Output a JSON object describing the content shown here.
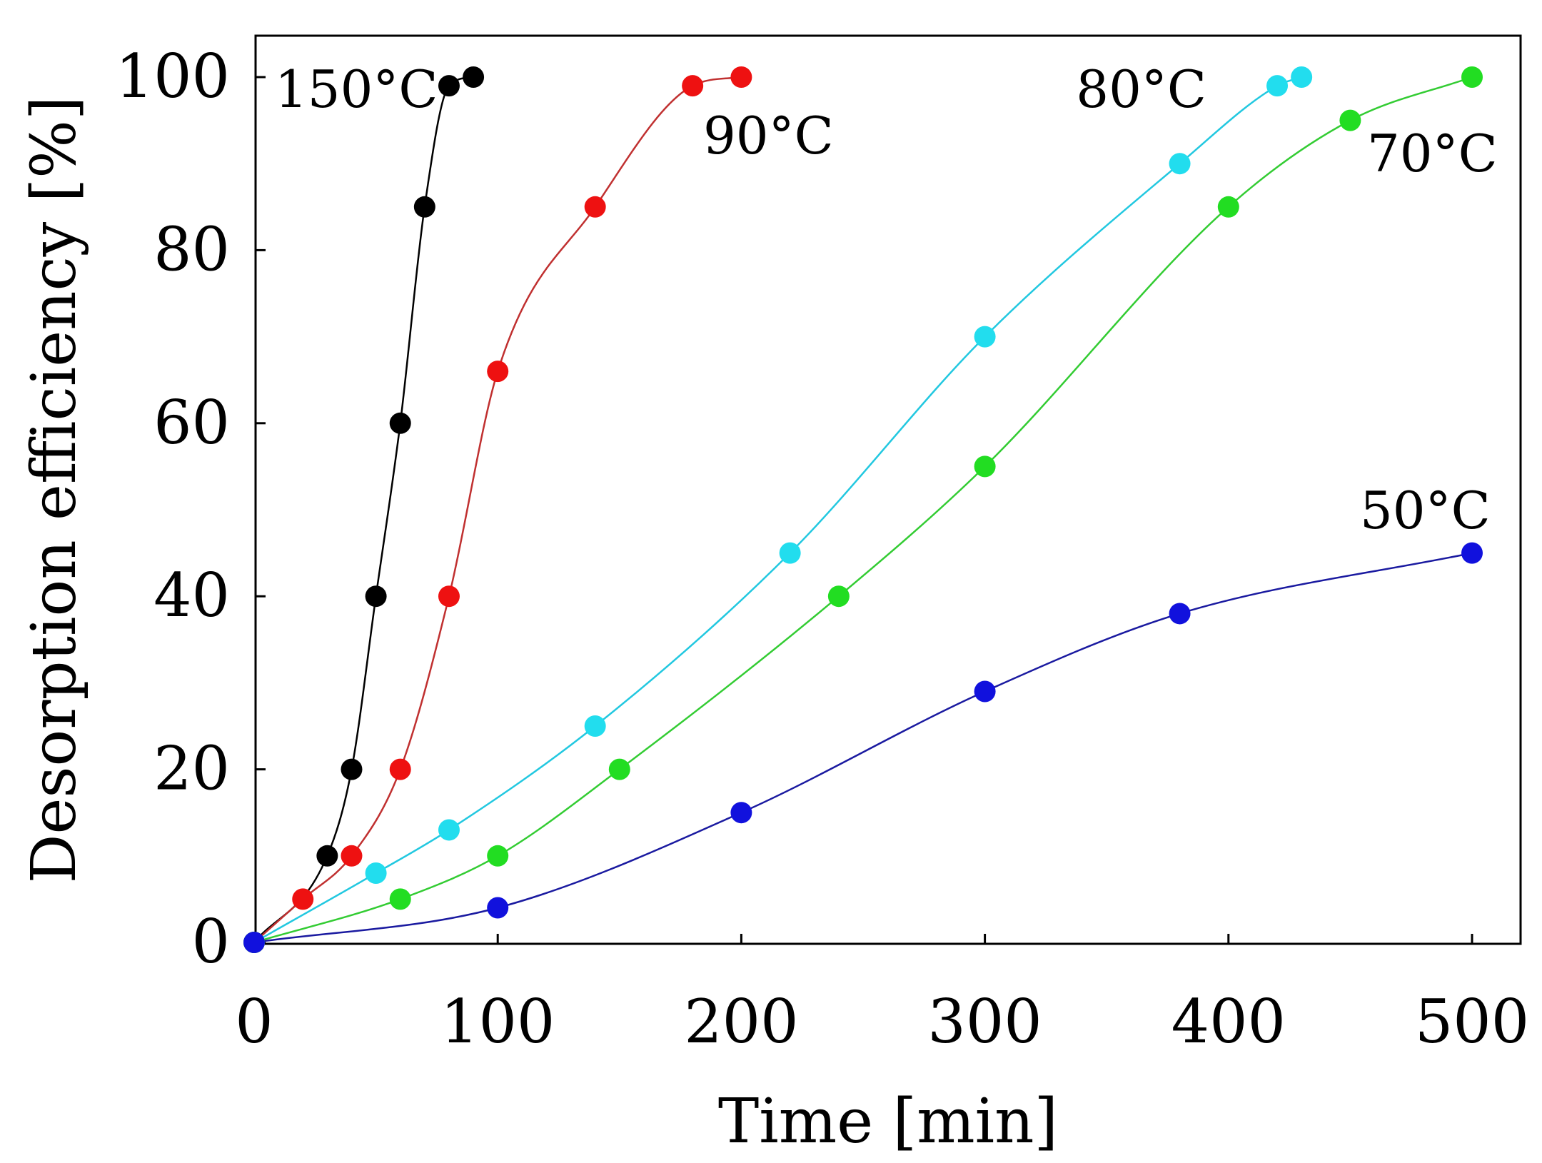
{
  "chart_data": {
    "type": "line",
    "title": "",
    "xlabel": "Time [min]",
    "ylabel": "Desorption efficiency [%]",
    "xlim": [
      0,
      520
    ],
    "ylim": [
      0,
      105
    ],
    "xticks": [
      0,
      100,
      200,
      300,
      400,
      500
    ],
    "yticks": [
      0,
      20,
      40,
      60,
      80,
      100
    ],
    "grid": false,
    "legend": "inline labels near curves",
    "series": [
      {
        "name": "150°C",
        "label_text": "150°C",
        "color": "#000000",
        "line_color": "#000000",
        "x": [
          0,
          30,
          40,
          50,
          60,
          70,
          80,
          90
        ],
        "y": [
          0,
          10,
          20,
          40,
          60,
          85,
          99,
          100
        ]
      },
      {
        "name": "90°C",
        "label_text": "90°C",
        "color": "#ee1111",
        "line_color": "#c03030",
        "x": [
          0,
          20,
          40,
          60,
          80,
          100,
          140,
          180,
          200
        ],
        "y": [
          0,
          5,
          10,
          20,
          40,
          66,
          85,
          99,
          100
        ]
      },
      {
        "name": "80°C",
        "label_text": "80°C",
        "color": "#22ddee",
        "line_color": "#22c8e0",
        "x": [
          0,
          50,
          80,
          140,
          220,
          300,
          380,
          420,
          430
        ],
        "y": [
          0,
          8,
          13,
          25,
          45,
          70,
          90,
          99,
          100
        ]
      },
      {
        "name": "70°C",
        "label_text": "70°C",
        "color": "#22dd22",
        "line_color": "#33cc33",
        "x": [
          0,
          60,
          100,
          150,
          240,
          300,
          400,
          450,
          500
        ],
        "y": [
          0,
          5,
          10,
          20,
          40,
          55,
          85,
          95,
          100
        ]
      },
      {
        "name": "50°C",
        "label_text": "50°C",
        "color": "#1111dd",
        "line_color": "#1a1aa0",
        "x": [
          0,
          100,
          200,
          300,
          380,
          500
        ],
        "y": [
          0,
          4,
          15,
          29,
          38,
          45
        ]
      }
    ]
  }
}
